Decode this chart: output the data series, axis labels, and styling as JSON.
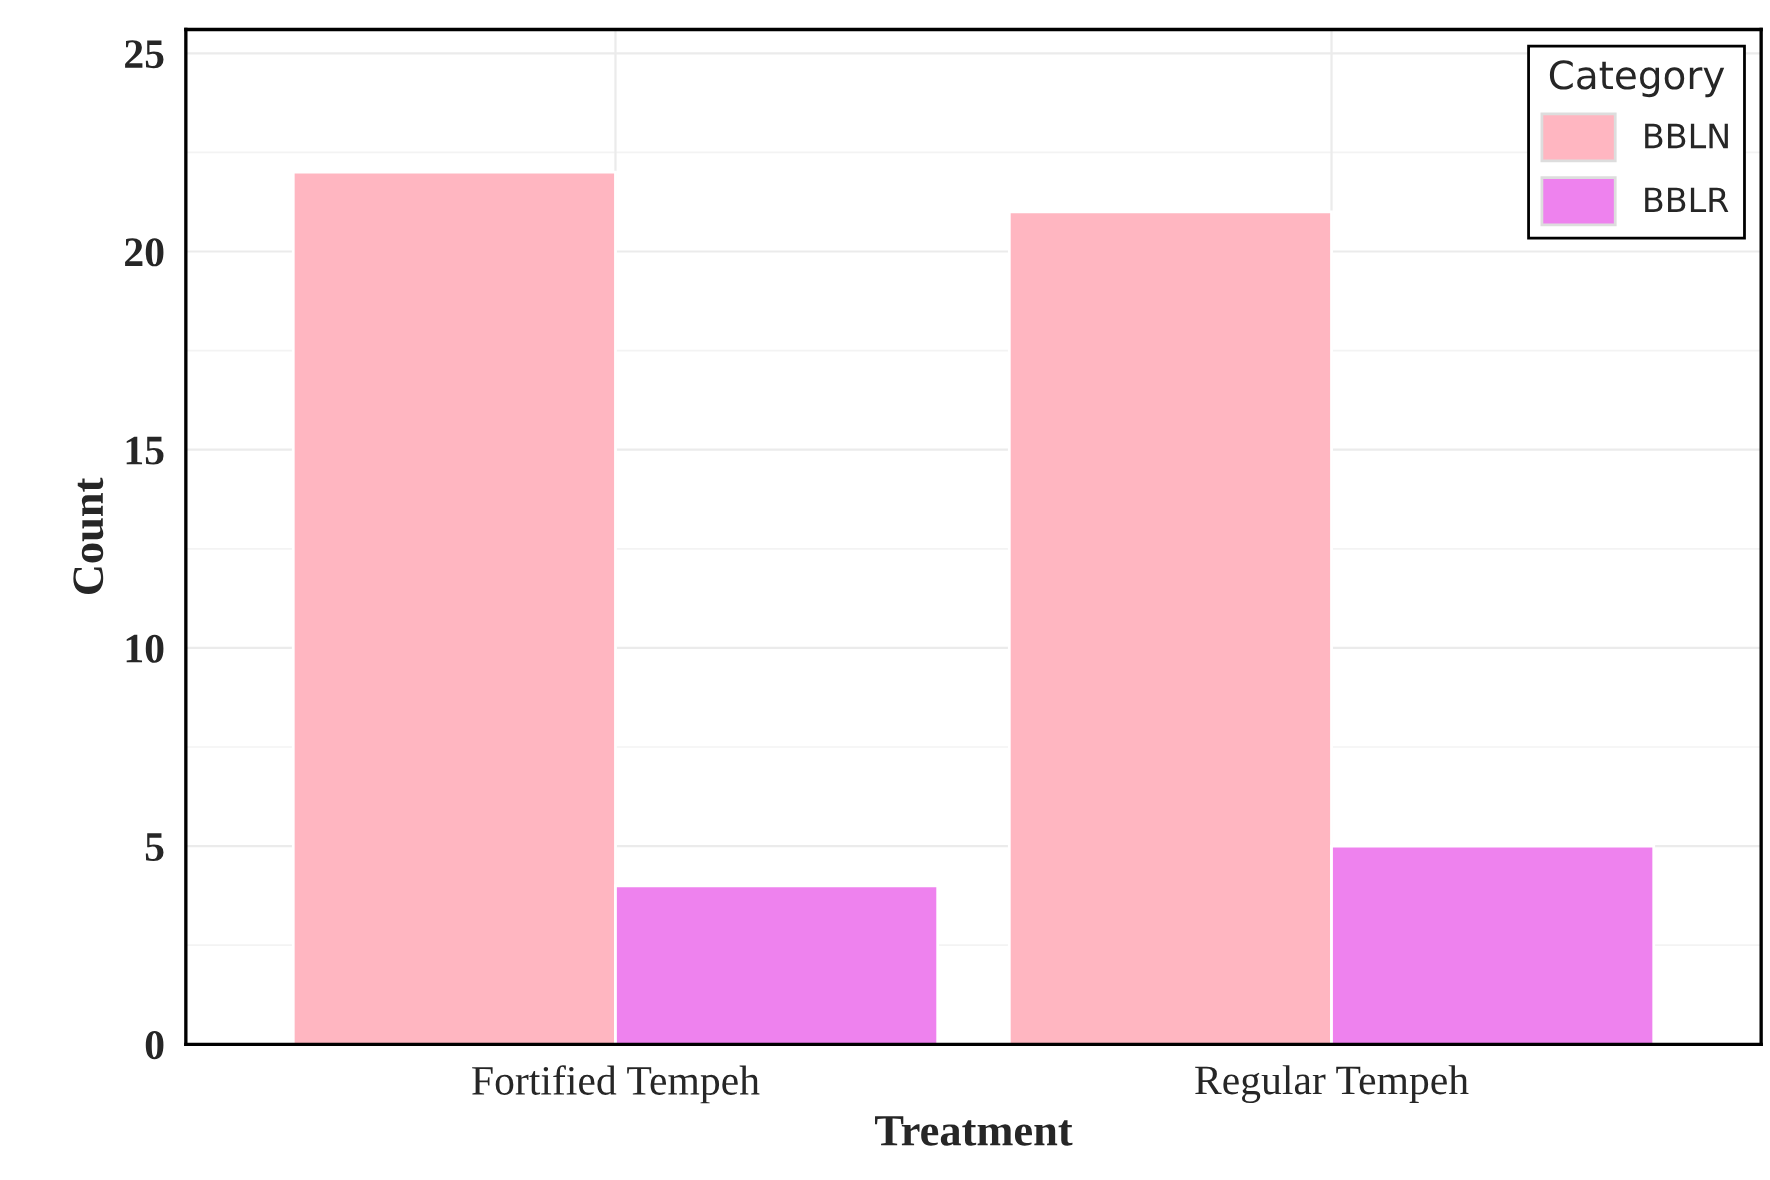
{
  "chart_data": {
    "type": "bar",
    "xlabel": "Treatment",
    "ylabel": "Count",
    "legend_title": "Category",
    "categories": [
      "Fortified Tempeh",
      "Regular Tempeh"
    ],
    "series": [
      {
        "name": "BBLN",
        "color": "#ffb6c1",
        "values": [
          22,
          21
        ]
      },
      {
        "name": "BBLR",
        "color": "#ee82ee",
        "values": [
          4,
          5
        ]
      }
    ],
    "ylim": [
      0,
      25.6
    ],
    "yticks": [
      0,
      5,
      10,
      15,
      20,
      25
    ],
    "grid": true,
    "legend": "top right"
  }
}
